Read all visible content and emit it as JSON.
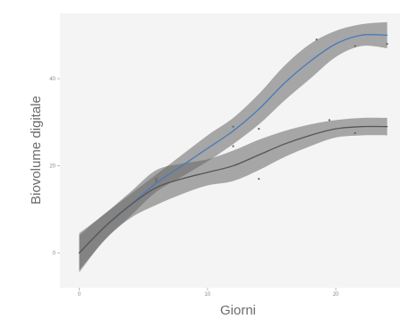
{
  "chart_data": {
    "type": "line",
    "title": "",
    "xlabel": "Giorni",
    "ylabel": "Biovolume digitale",
    "xlim": [
      -1.5,
      25
    ],
    "ylim": [
      -8,
      55
    ],
    "x_ticks": [
      0,
      10,
      20
    ],
    "y_ticks": [
      0,
      20,
      40
    ],
    "grid": false,
    "legend": "none",
    "colors": {
      "blue_series": "#4a7ab8",
      "gray_series": "#555555",
      "ribbon": "#666666",
      "points": "#666666",
      "panel": "#f4f4f4"
    },
    "series": [
      {
        "line_color": "#4a7ab8",
        "x": [
          0,
          2,
          4,
          6,
          8,
          10,
          12,
          14,
          16,
          18,
          20,
          22,
          24
        ],
        "y": [
          0,
          6,
          11,
          16,
          20,
          24,
          28,
          33,
          39,
          44,
          48,
          50,
          50
        ],
        "upper": [
          4,
          9,
          13.5,
          18,
          22.5,
          27,
          31,
          36.5,
          43,
          48,
          51,
          52.5,
          53
        ],
        "lower": [
          -4,
          3,
          8.5,
          14,
          17.5,
          21,
          25,
          29.5,
          35,
          40,
          45,
          47.5,
          47
        ],
        "points": {
          "x": [
            6,
            12,
            14,
            18.5,
            21.5,
            24
          ],
          "y": [
            16.5,
            29,
            28.5,
            49,
            47.5,
            48
          ]
        }
      },
      {
        "line_color": "#555555",
        "x": [
          0,
          2,
          4,
          6,
          8,
          10,
          12,
          14,
          16,
          18,
          20,
          22,
          24
        ],
        "y": [
          0,
          6,
          11,
          15,
          17,
          18.5,
          20,
          22.5,
          25,
          27,
          28.5,
          29,
          29
        ],
        "upper": [
          4.5,
          9,
          14,
          19,
          20.5,
          21.5,
          23.5,
          26,
          28,
          29.5,
          30.5,
          31,
          31
        ],
        "lower": [
          -4.5,
          3,
          8,
          11,
          13.5,
          15.5,
          16.5,
          19,
          22,
          24.5,
          26.5,
          27,
          27
        ],
        "points": {
          "x": [
            6,
            12,
            14,
            19.5,
            21.5
          ],
          "y": [
            17,
            24.5,
            17,
            30.5,
            27.5
          ]
        }
      }
    ]
  }
}
